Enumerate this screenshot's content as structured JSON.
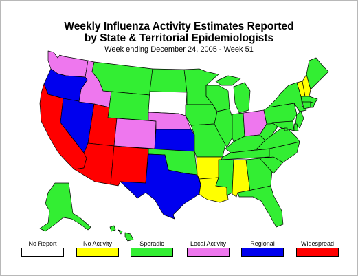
{
  "title_line1": "Weekly Influenza Activity Estimates Reported",
  "title_line2": "by State & Territorial Epidemiologists",
  "subtitle": "Week ending December 24, 2005 - Week 51",
  "colors": {
    "no_report": "#ffffff",
    "no_activity": "#ffff00",
    "sporadic": "#33ee33",
    "local": "#ee77ee",
    "regional": "#0000ee",
    "widespread": "#ff0000"
  },
  "legend": [
    {
      "label": "No Report",
      "color": "#ffffff"
    },
    {
      "label": "No Activity",
      "color": "#ffff00"
    },
    {
      "label": "Sporadic",
      "color": "#33ee33"
    },
    {
      "label": "Local Activity",
      "color": "#ee77ee"
    },
    {
      "label": "Regional",
      "color": "#0000ee"
    },
    {
      "label": "Widespread",
      "color": "#ff0000"
    }
  ],
  "states": {
    "WA": "local",
    "OR": "regional",
    "CA": "widespread",
    "NV": "regional",
    "ID": "local",
    "MT": "sporadic",
    "WY": "sporadic",
    "UT": "widespread",
    "AZ": "widespread",
    "CO": "local",
    "NM": "widespread",
    "ND": "sporadic",
    "SD": "no_report",
    "NE": "local",
    "KS": "regional",
    "OK": "sporadic",
    "TX": "regional",
    "MN": "sporadic",
    "IA": "sporadic",
    "MO": "sporadic",
    "AR": "no_activity",
    "LA": "no_activity",
    "WI": "sporadic",
    "IL": "sporadic",
    "MI": "sporadic",
    "IN": "sporadic",
    "OH": "local",
    "KY": "sporadic",
    "TN": "sporadic",
    "MS": "sporadic",
    "AL": "no_activity",
    "GA": "sporadic",
    "FL": "sporadic",
    "SC": "sporadic",
    "NC": "sporadic",
    "VA": "sporadic",
    "WV": "sporadic",
    "PA": "sporadic",
    "NY": "sporadic",
    "VT": "no_activity",
    "NH": "no_activity",
    "ME": "sporadic",
    "MA": "sporadic",
    "CT": "sporadic",
    "RI": "sporadic",
    "NJ": "sporadic",
    "DE": "sporadic",
    "MD": "sporadic",
    "DC": "sporadic",
    "AK": "sporadic",
    "HI": "sporadic"
  }
}
